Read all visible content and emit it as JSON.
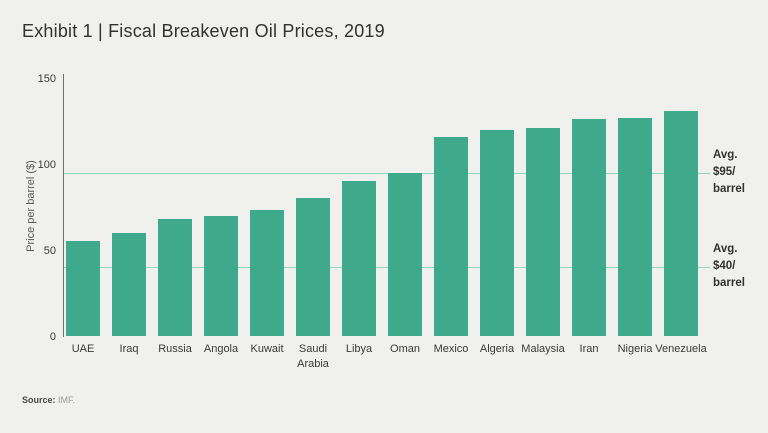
{
  "header": {
    "title": "Exhibit 1 | Fiscal Breakeven Oil Prices, 2019"
  },
  "footer": {
    "source_label": "Source:",
    "source_value": "IMF."
  },
  "colors": {
    "background": "#f0f0ef",
    "bar": "#3ea98b",
    "reference_line": "#8ed7c3",
    "axis": "#6f6f6f",
    "text_dark": "#323232",
    "text_muted": "#5a5a5a"
  },
  "chart_data": {
    "type": "bar",
    "title": "Exhibit 1 | Fiscal Breakeven Oil Prices, 2019",
    "xlabel": "",
    "ylabel": "Price per barrel ($)",
    "ylim": [
      0,
      150
    ],
    "yticks": [
      0,
      50,
      100,
      150
    ],
    "grid": false,
    "legend": "none",
    "categories": [
      "UAE",
      "Iraq",
      "Russia",
      "Angola",
      "Kuwait",
      "Saudi Arabia",
      "Libya",
      "Oman",
      "Mexico",
      "Algeria",
      "Malaysia",
      "Iran",
      "Nigeria",
      "Venezuela"
    ],
    "values": [
      55,
      60,
      68,
      70,
      73,
      80,
      90,
      95,
      116,
      120,
      121,
      126,
      127,
      131
    ],
    "bar_color": "#3ea98b",
    "reference_lines": [
      {
        "value": 95,
        "label": "Avg. $95/barrel",
        "label_lines": [
          "Avg.",
          "$95/",
          "barrel"
        ],
        "color": "#8ed7c3"
      },
      {
        "value": 40,
        "label": "Avg. $40/barrel",
        "label_lines": [
          "Avg.",
          "$40/",
          "barrel"
        ],
        "color": "#8ed7c3"
      }
    ],
    "source": "IMF."
  }
}
